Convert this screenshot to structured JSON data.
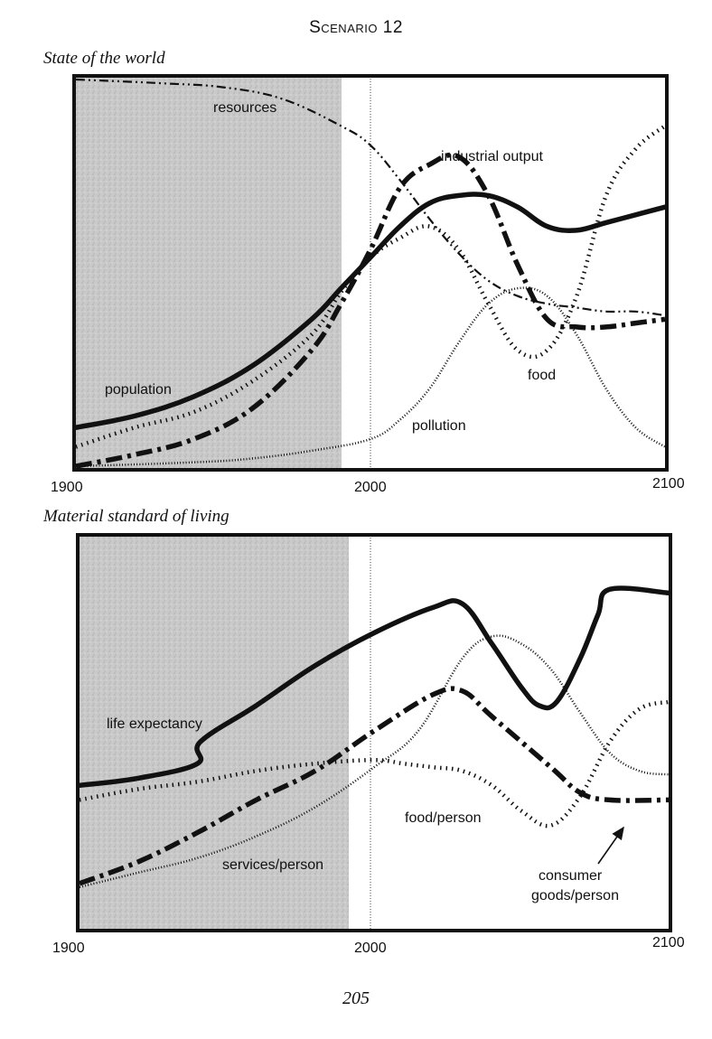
{
  "page": {
    "title": "Scenario 12",
    "page_number": "205"
  },
  "chart_data": [
    {
      "type": "line",
      "title": "State of the world",
      "xlim": [
        1900,
        2100
      ],
      "x_ticks": [
        "1900",
        "2000",
        "2100"
      ],
      "shaded_region": [
        1900,
        1990
      ],
      "reference_line": 2000,
      "series": [
        {
          "name": "population",
          "style": "solid-thick",
          "points": [
            [
              1900,
              0.1
            ],
            [
              1920,
              0.13
            ],
            [
              1940,
              0.18
            ],
            [
              1960,
              0.26
            ],
            [
              1980,
              0.38
            ],
            [
              1990,
              0.46
            ],
            [
              2000,
              0.54
            ],
            [
              2010,
              0.62
            ],
            [
              2020,
              0.68
            ],
            [
              2030,
              0.7
            ],
            [
              2040,
              0.7
            ],
            [
              2050,
              0.67
            ],
            [
              2060,
              0.62
            ],
            [
              2070,
              0.61
            ],
            [
              2080,
              0.63
            ],
            [
              2090,
              0.65
            ],
            [
              2100,
              0.67
            ]
          ]
        },
        {
          "name": "food",
          "style": "dotted",
          "points": [
            [
              1900,
              0.05
            ],
            [
              1920,
              0.1
            ],
            [
              1940,
              0.14
            ],
            [
              1960,
              0.22
            ],
            [
              1980,
              0.34
            ],
            [
              1990,
              0.45
            ],
            [
              2000,
              0.54
            ],
            [
              2010,
              0.59
            ],
            [
              2020,
              0.62
            ],
            [
              2030,
              0.56
            ],
            [
              2040,
              0.42
            ],
            [
              2050,
              0.3
            ],
            [
              2060,
              0.3
            ],
            [
              2070,
              0.44
            ],
            [
              2080,
              0.7
            ],
            [
              2090,
              0.82
            ],
            [
              2100,
              0.88
            ]
          ]
        },
        {
          "name": "industrial output",
          "style": "dash-dot-thick",
          "points": [
            [
              1900,
              0.0
            ],
            [
              1920,
              0.03
            ],
            [
              1940,
              0.07
            ],
            [
              1960,
              0.15
            ],
            [
              1980,
              0.3
            ],
            [
              1990,
              0.42
            ],
            [
              2000,
              0.56
            ],
            [
              2010,
              0.72
            ],
            [
              2020,
              0.78
            ],
            [
              2030,
              0.8
            ],
            [
              2040,
              0.7
            ],
            [
              2050,
              0.52
            ],
            [
              2060,
              0.38
            ],
            [
              2070,
              0.36
            ],
            [
              2080,
              0.36
            ],
            [
              2090,
              0.37
            ],
            [
              2100,
              0.38
            ]
          ]
        },
        {
          "name": "resources",
          "style": "dash-dot-dot",
          "points": [
            [
              1900,
              1.0
            ],
            [
              1930,
              0.99
            ],
            [
              1950,
              0.98
            ],
            [
              1970,
              0.95
            ],
            [
              1990,
              0.88
            ],
            [
              2000,
              0.83
            ],
            [
              2010,
              0.74
            ],
            [
              2020,
              0.64
            ],
            [
              2030,
              0.55
            ],
            [
              2040,
              0.48
            ],
            [
              2050,
              0.44
            ],
            [
              2060,
              0.42
            ],
            [
              2070,
              0.41
            ],
            [
              2080,
              0.4
            ],
            [
              2090,
              0.4
            ],
            [
              2100,
              0.39
            ]
          ]
        },
        {
          "name": "pollution",
          "style": "fine-dotted",
          "points": [
            [
              1900,
              0.0
            ],
            [
              1940,
              0.01
            ],
            [
              1960,
              0.02
            ],
            [
              1980,
              0.04
            ],
            [
              2000,
              0.07
            ],
            [
              2010,
              0.12
            ],
            [
              2020,
              0.2
            ],
            [
              2030,
              0.32
            ],
            [
              2040,
              0.42
            ],
            [
              2050,
              0.46
            ],
            [
              2060,
              0.44
            ],
            [
              2070,
              0.34
            ],
            [
              2080,
              0.2
            ],
            [
              2090,
              0.1
            ],
            [
              2100,
              0.05
            ]
          ]
        }
      ]
    },
    {
      "type": "line",
      "title": "Material standard of living",
      "xlim": [
        1900,
        2100
      ],
      "x_ticks": [
        "1900",
        "2000",
        "2100"
      ],
      "shaded_region": [
        1900,
        1992
      ],
      "reference_line": 2000,
      "series": [
        {
          "name": "life expectancy",
          "style": "solid-thick",
          "points": [
            [
              1900,
              0.33
            ],
            [
              1920,
              0.35
            ],
            [
              1940,
              0.39
            ],
            [
              1941,
              0.45
            ],
            [
              1960,
              0.55
            ],
            [
              1980,
              0.66
            ],
            [
              2000,
              0.75
            ],
            [
              2020,
              0.82
            ],
            [
              2030,
              0.83
            ],
            [
              2040,
              0.72
            ],
            [
              2050,
              0.6
            ],
            [
              2056,
              0.55
            ],
            [
              2062,
              0.56
            ],
            [
              2070,
              0.68
            ],
            [
              2076,
              0.8
            ],
            [
              2080,
              0.87
            ],
            [
              2100,
              0.86
            ]
          ]
        },
        {
          "name": "food/person",
          "style": "dotted",
          "points": [
            [
              1900,
              0.29
            ],
            [
              1920,
              0.32
            ],
            [
              1940,
              0.34
            ],
            [
              1960,
              0.37
            ],
            [
              1980,
              0.39
            ],
            [
              2000,
              0.4
            ],
            [
              2010,
              0.39
            ],
            [
              2020,
              0.38
            ],
            [
              2030,
              0.37
            ],
            [
              2040,
              0.33
            ],
            [
              2050,
              0.26
            ],
            [
              2060,
              0.22
            ],
            [
              2070,
              0.3
            ],
            [
              2080,
              0.45
            ],
            [
              2090,
              0.54
            ],
            [
              2100,
              0.56
            ]
          ]
        },
        {
          "name": "consumer goods/person",
          "style": "dash-dot-thick",
          "points": [
            [
              1900,
              0.06
            ],
            [
              1920,
              0.12
            ],
            [
              1940,
              0.2
            ],
            [
              1960,
              0.29
            ],
            [
              1980,
              0.37
            ],
            [
              2000,
              0.48
            ],
            [
              2020,
              0.58
            ],
            [
              2030,
              0.59
            ],
            [
              2040,
              0.52
            ],
            [
              2060,
              0.38
            ],
            [
              2070,
              0.31
            ],
            [
              2080,
              0.29
            ],
            [
              2100,
              0.29
            ]
          ]
        },
        {
          "name": "services/person",
          "style": "fine-dotted",
          "points": [
            [
              1900,
              0.05
            ],
            [
              1920,
              0.09
            ],
            [
              1940,
              0.13
            ],
            [
              1960,
              0.19
            ],
            [
              1980,
              0.27
            ],
            [
              2000,
              0.38
            ],
            [
              2015,
              0.48
            ],
            [
              2030,
              0.68
            ],
            [
              2040,
              0.74
            ],
            [
              2050,
              0.72
            ],
            [
              2060,
              0.65
            ],
            [
              2070,
              0.53
            ],
            [
              2080,
              0.42
            ],
            [
              2090,
              0.37
            ],
            [
              2100,
              0.36
            ]
          ]
        }
      ],
      "annotations": [
        {
          "text": "consumer goods/person",
          "points_to_year": 2088
        }
      ]
    }
  ]
}
